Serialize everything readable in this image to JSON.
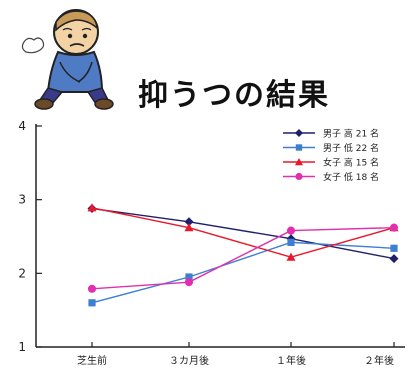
{
  "chart_data": {
    "type": "line",
    "title": "抑うつの結果",
    "xlabel": "",
    "ylabel": "",
    "categories": [
      "芝生前",
      "３カ月後",
      "１年後",
      "２年後"
    ],
    "ylim": [
      1,
      4
    ],
    "yticks": [
      1,
      2,
      3,
      4
    ],
    "grid": false,
    "legend_position": "top-right",
    "series": [
      {
        "name": "男子 高 21 名",
        "values": [
          2.88,
          2.7,
          2.47,
          2.2
        ],
        "color": "#1f1f6e",
        "marker": "diamond"
      },
      {
        "name": "男子 低 22 名",
        "values": [
          1.6,
          1.95,
          2.42,
          2.34
        ],
        "color": "#3f7fd0",
        "marker": "square"
      },
      {
        "name": "女子 高 15 名",
        "values": [
          2.89,
          2.62,
          2.22,
          2.62
        ],
        "color": "#e8182a",
        "marker": "triangle"
      },
      {
        "name": "女子 低 18 名",
        "values": [
          1.79,
          1.88,
          2.58,
          2.62
        ],
        "color": "#e030b0",
        "marker": "circle"
      }
    ]
  },
  "illustration": {
    "icon": "depressed-boy-icon"
  }
}
